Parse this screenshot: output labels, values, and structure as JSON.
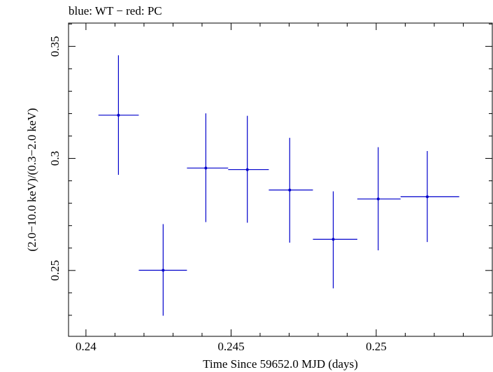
{
  "chart_data": {
    "type": "scatter",
    "title": "blue: WT − red: PC",
    "xlabel": "Time Since 59652.0 MJD (days)",
    "ylabel": "(2.0−10.0 keV)/(0.3−2.0 keV)",
    "xlim": [
      0.2394,
      0.254
    ],
    "ylim": [
      0.2206,
      0.3604
    ],
    "xticks": [
      {
        "value": 0.24,
        "label": "0.24"
      },
      {
        "value": 0.245,
        "label": "0.245"
      },
      {
        "value": 0.25,
        "label": "0.25"
      }
    ],
    "yticks": [
      {
        "value": 0.25,
        "label": "0.25"
      },
      {
        "value": 0.3,
        "label": "0.3"
      },
      {
        "value": 0.35,
        "label": "0.35"
      }
    ],
    "grid": false,
    "series": [
      {
        "name": "WT",
        "color": "#0000cc",
        "points": [
          {
            "x": 0.24112,
            "xlo": 0.24043,
            "xhi": 0.24182,
            "y": 0.3193,
            "ylo": 0.2927,
            "yhi": 0.346
          },
          {
            "x": 0.24266,
            "xlo": 0.24182,
            "xhi": 0.24348,
            "y": 0.2501,
            "ylo": 0.2298,
            "yhi": 0.2707
          },
          {
            "x": 0.24413,
            "xlo": 0.24348,
            "xhi": 0.2449,
            "y": 0.2957,
            "ylo": 0.2716,
            "yhi": 0.3201
          },
          {
            "x": 0.24556,
            "xlo": 0.2449,
            "xhi": 0.2463,
            "y": 0.295,
            "ylo": 0.2713,
            "yhi": 0.319
          },
          {
            "x": 0.24702,
            "xlo": 0.2463,
            "xhi": 0.24782,
            "y": 0.2859,
            "ylo": 0.2624,
            "yhi": 0.3092
          },
          {
            "x": 0.24852,
            "xlo": 0.24782,
            "xhi": 0.24935,
            "y": 0.2639,
            "ylo": 0.242,
            "yhi": 0.2853
          },
          {
            "x": 0.25007,
            "xlo": 0.24935,
            "xhi": 0.25084,
            "y": 0.2819,
            "ylo": 0.259,
            "yhi": 0.305
          },
          {
            "x": 0.25176,
            "xlo": 0.25084,
            "xhi": 0.25286,
            "y": 0.2829,
            "ylo": 0.2627,
            "yhi": 0.3033
          }
        ]
      }
    ]
  }
}
